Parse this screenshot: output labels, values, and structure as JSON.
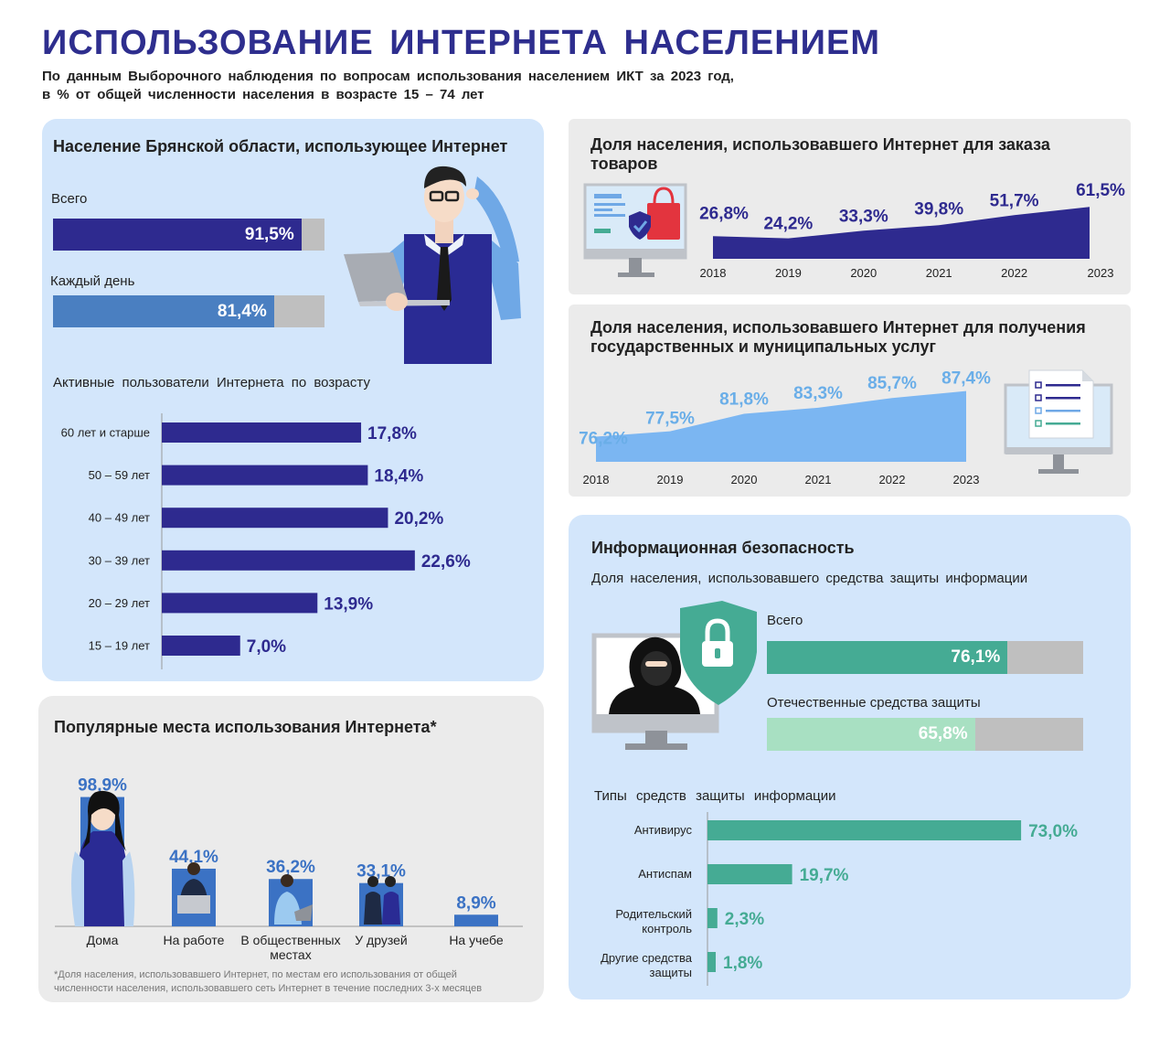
{
  "header": {
    "title": "ИСПОЛЬЗОВАНИЕ ИНТЕРНЕТА НАСЕЛЕНИЕМ",
    "subtitle_line1": "По данным Выборочного наблюдения по вопросам использования населением ИКТ за 2023 год,",
    "subtitle_line2": "в % от общей численности населения в возрасте 15 – 74 лет"
  },
  "internet_users": {
    "heading": "Население Брянской области, использующее Интернет",
    "total_label": "Всего",
    "total_value": "91,5%",
    "total_fraction": 0.915,
    "daily_label": "Каждый день",
    "daily_value": "81,4%",
    "daily_fraction": 0.814,
    "colors": {
      "total": "#2e2a8f",
      "daily": "#4a7fc1",
      "track": "#bfbfbf"
    }
  },
  "age": {
    "heading": "Активные пользователи Интернета по возрасту",
    "rows": [
      {
        "label": "60 лет и старше",
        "value": 17.8,
        "text": "17,8%"
      },
      {
        "label": "50 – 59 лет",
        "value": 18.4,
        "text": "18,4%"
      },
      {
        "label": "40 – 49 лет",
        "value": 20.2,
        "text": "20,2%"
      },
      {
        "label": "30 – 39 лет",
        "value": 22.6,
        "text": "22,6%"
      },
      {
        "label": "20 – 29 лет",
        "value": 13.9,
        "text": "13,9%"
      },
      {
        "label": "15 – 19 лет",
        "value": 7.0,
        "text": "7,0%"
      }
    ],
    "color": "#2e2a8f"
  },
  "orders": {
    "heading": "Доля населения, использовавшего Интернет для заказа товаров",
    "color": "#2e2a8f"
  },
  "gov": {
    "heading": "Доля населения, использовавшего Интернет для получения государственных и муниципальных услуг",
    "color": "#7bb6f2",
    "label_color": "#6aaee8"
  },
  "places": {
    "heading": "Популярные места использования Интернета*",
    "items": [
      {
        "label": "Дома",
        "value": 98.9,
        "text": "98,9%"
      },
      {
        "label": "На работе",
        "value": 44.1,
        "text": "44,1%"
      },
      {
        "label": "В общественных местах",
        "value": 36.2,
        "text": "36,2%"
      },
      {
        "label": "У друзей",
        "value": 33.1,
        "text": "33,1%"
      },
      {
        "label": "На учебе",
        "value": 8.9,
        "text": "8,9%"
      }
    ],
    "color": "#3b72c4",
    "footnote_line1": "*Доля населения, использовавшего Интернет, по местам его использования от общей",
    "footnote_line2": "численности населения, использовавшего сеть Интернет в течение последних 3-х месяцев"
  },
  "security": {
    "heading": "Информационная безопасность",
    "subheading": "Доля населения, использовавшего средства защиты информации",
    "total_label": "Всего",
    "total_value": "76,1%",
    "total_fraction": 0.761,
    "domestic_label": "Отечественные средства защиты",
    "domestic_value": "65,8%",
    "domestic_fraction": 0.658,
    "colors": {
      "total": "#45ab94",
      "domestic": "#a8e0c2",
      "track": "#bfbfbf"
    },
    "types_heading": "Типы средств защиты информации",
    "types": [
      {
        "label1": "Антивирус",
        "label2": "",
        "value": 73.0,
        "text": "73,0%"
      },
      {
        "label1": "Антиспам",
        "label2": "",
        "value": 19.7,
        "text": "19,7%"
      },
      {
        "label1": "Родительский",
        "label2": "контроль",
        "value": 2.3,
        "text": "2,3%"
      },
      {
        "label1": "Другие средства",
        "label2": "защиты",
        "value": 1.8,
        "text": "1,8%"
      }
    ],
    "types_color": "#45ab94"
  },
  "chart_data": [
    {
      "type": "area",
      "title": "Доля населения, использовавшего Интернет для заказа товаров",
      "x": [
        "2018",
        "2019",
        "2020",
        "2021",
        "2022",
        "2023"
      ],
      "values": [
        26.8,
        24.2,
        33.3,
        39.8,
        51.7,
        61.5
      ],
      "labels": [
        "26,8%",
        "24,2%",
        "33,3%",
        "39,8%",
        "51,7%",
        "61,5%"
      ],
      "ylim": [
        0,
        65
      ]
    },
    {
      "type": "area",
      "title": "Доля населения, использовавшего Интернет для получения государственных и муниципальных услуг",
      "x": [
        "2018",
        "2019",
        "2020",
        "2021",
        "2022",
        "2023"
      ],
      "values": [
        76.2,
        77.5,
        81.8,
        83.3,
        85.7,
        87.4
      ],
      "labels": [
        "76,2%",
        "77,5%",
        "81,8%",
        "83,3%",
        "85,7%",
        "87,4%"
      ],
      "ylim": [
        70,
        88
      ]
    },
    {
      "type": "bar",
      "title": "Активные пользователи Интернета по возрасту",
      "categories": [
        "60 лет и старше",
        "50 – 59 лет",
        "40 – 49 лет",
        "30 – 39 лет",
        "20 – 29 лет",
        "15 – 19 лет"
      ],
      "values": [
        17.8,
        18.4,
        20.2,
        22.6,
        13.9,
        7.0
      ]
    },
    {
      "type": "bar",
      "title": "Популярные места использования Интернета*",
      "categories": [
        "Дома",
        "На работе",
        "В общественных местах",
        "У друзей",
        "На учебе"
      ],
      "values": [
        98.9,
        44.1,
        36.2,
        33.1,
        8.9
      ]
    },
    {
      "type": "bar",
      "title": "Типы средств защиты информации",
      "categories": [
        "Антивирус",
        "Антиспам",
        "Родительский контроль",
        "Другие средства защиты"
      ],
      "values": [
        73.0,
        19.7,
        2.3,
        1.8
      ]
    }
  ]
}
